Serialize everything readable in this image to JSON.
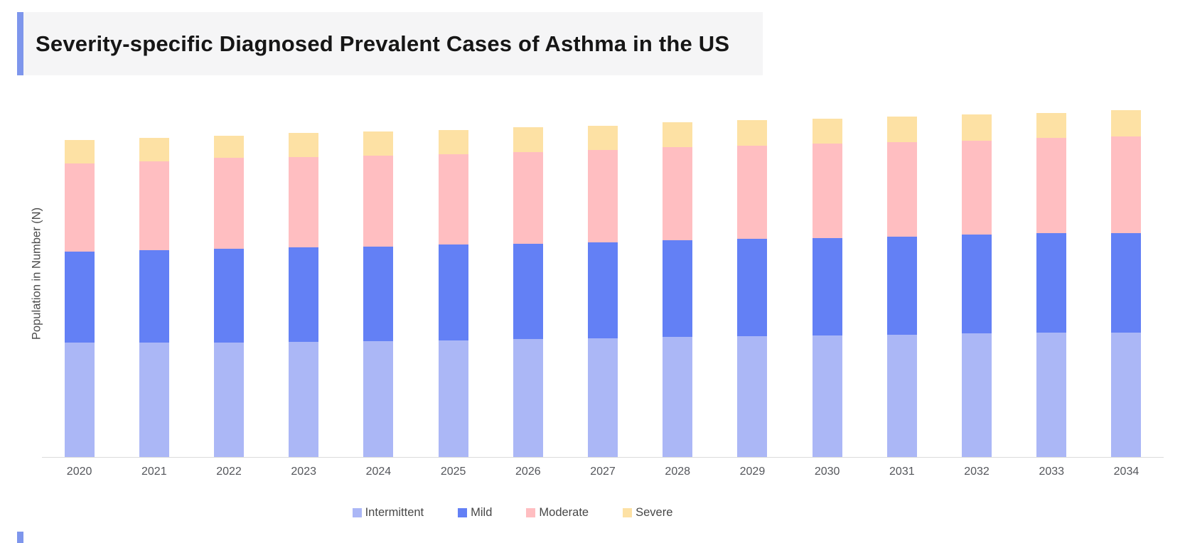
{
  "title": {
    "text": "Severity-specific Diagnosed Prevalent Cases of Asthma in the US"
  },
  "accent_color": "#7e96ec",
  "title_background": "#f5f5f6",
  "chart_data": {
    "type": "bar",
    "stacked": true,
    "title": "Severity-specific Diagnosed Prevalent Cases of Asthma in the US",
    "xlabel": "",
    "ylabel": "Population in Number (N)",
    "categories": [
      "2020",
      "2021",
      "2022",
      "2023",
      "2024",
      "2025",
      "2026",
      "2027",
      "2028",
      "2029",
      "2030",
      "2031",
      "2032",
      "2033",
      "2034"
    ],
    "series": [
      {
        "name": "Intermittent",
        "color": "#abb7f6",
        "values": [
          161,
          161,
          161,
          162,
          163,
          164,
          166,
          167,
          169,
          170,
          171,
          172,
          174,
          175,
          175
        ]
      },
      {
        "name": "Mild",
        "color": "#6380f5",
        "values": [
          128,
          130,
          132,
          133,
          133,
          135,
          134,
          135,
          136,
          137,
          137,
          138,
          139,
          140,
          140
        ]
      },
      {
        "name": "Moderate",
        "color": "#ffbec1",
        "values": [
          124,
          125,
          128,
          127,
          128,
          127,
          129,
          130,
          131,
          131,
          133,
          133,
          132,
          134,
          136
        ]
      },
      {
        "name": "Severe",
        "color": "#fde1a4",
        "values": [
          33,
          33,
          31,
          34,
          34,
          34,
          35,
          34,
          35,
          36,
          35,
          36,
          37,
          35,
          37
        ]
      }
    ],
    "value_units": "relative bar-height units (y-axis shows no numeric tick labels)",
    "y_axis_ticks": [],
    "grid": false,
    "legend_position": "bottom"
  }
}
